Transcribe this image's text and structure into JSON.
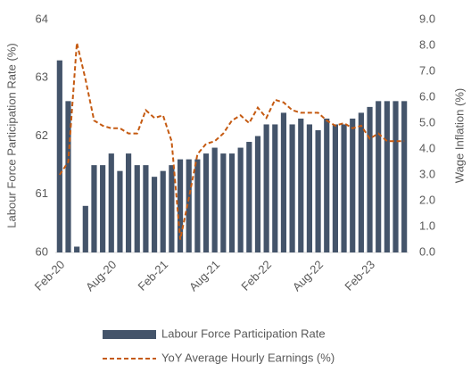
{
  "chart_data": {
    "type": "bar_line",
    "y_label": "Labour Force Participation Rate (%)",
    "y2_label": "Wage Inflation (%)",
    "categories": [
      "Feb-20",
      null,
      null,
      null,
      null,
      null,
      "Aug-20",
      null,
      null,
      null,
      null,
      null,
      "Feb-21",
      null,
      null,
      null,
      null,
      null,
      "Aug-21",
      null,
      null,
      null,
      null,
      null,
      "Feb-22",
      null,
      null,
      null,
      null,
      null,
      "Aug-22",
      null,
      null,
      null,
      null,
      null,
      "Feb-23",
      null,
      null,
      null,
      null
    ],
    "series": [
      {
        "name": "Labour Force Participation Rate",
        "type": "bar",
        "color": "#44546a",
        "values": [
          63.3,
          62.6,
          60.1,
          60.8,
          61.5,
          61.5,
          61.7,
          61.4,
          61.7,
          61.5,
          61.5,
          61.3,
          61.4,
          61.5,
          61.6,
          61.6,
          61.6,
          61.7,
          61.8,
          61.7,
          61.7,
          61.8,
          61.9,
          62.0,
          62.2,
          62.2,
          62.4,
          62.2,
          62.3,
          62.2,
          62.1,
          62.3,
          62.2,
          62.2,
          62.3,
          62.4,
          62.5,
          62.6,
          62.6,
          62.6,
          62.6
        ]
      },
      {
        "name": "YoY Average Hourly Earnings (%)",
        "type": "line",
        "axis": "y2",
        "color": "#c55a11",
        "dashed": true,
        "values": [
          3.0,
          3.5,
          8.1,
          6.7,
          5.1,
          4.9,
          4.8,
          4.8,
          4.6,
          4.6,
          5.5,
          5.2,
          5.3,
          4.3,
          0.5,
          2.1,
          3.8,
          4.2,
          4.3,
          4.6,
          5.1,
          5.3,
          5.0,
          5.6,
          5.2,
          5.9,
          5.8,
          5.5,
          5.4,
          5.4,
          5.4,
          5.1,
          4.9,
          5.0,
          4.8,
          4.9,
          4.4,
          4.6,
          4.3,
          4.3,
          4.3
        ]
      }
    ],
    "ylim": [
      60,
      64
    ],
    "yticks": [
      60,
      61,
      62,
      63,
      64
    ],
    "y2lim": [
      0,
      9
    ],
    "y2ticks": [
      {
        "value": 0,
        "label": "0.0"
      },
      {
        "value": 1,
        "label": "1.0"
      },
      {
        "value": 2,
        "label": "2.0"
      },
      {
        "value": 3,
        "label": "3.0"
      },
      {
        "value": 4,
        "label": "4.0"
      },
      {
        "value": 5,
        "label": "5.0"
      },
      {
        "value": 6,
        "label": "6.0"
      },
      {
        "value": 7,
        "label": "7.0"
      },
      {
        "value": 8,
        "label": "8.0"
      },
      {
        "value": 9,
        "label": "9.0"
      }
    ],
    "legend": "bottom",
    "grid": false
  }
}
